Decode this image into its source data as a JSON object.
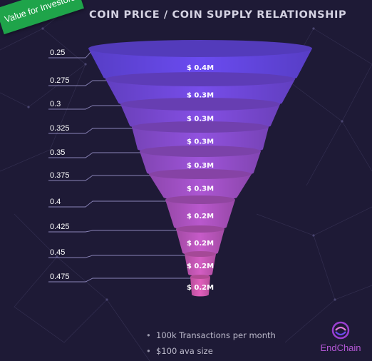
{
  "badge": "Value for Investors",
  "title": "COIN PRICE / COIN SUPPLY RELATIONSHIP",
  "funnel": {
    "levels": [
      {
        "price": "0.25",
        "value": "$ 0.4M"
      },
      {
        "price": "0.275",
        "value": "$ 0.3M"
      },
      {
        "price": "0.3",
        "value": "$ 0.3M"
      },
      {
        "price": "0.325",
        "value": "$ 0.3M"
      },
      {
        "price": "0.35",
        "value": "$ 0.3M"
      },
      {
        "price": "0.375",
        "value": "$ 0.3M"
      },
      {
        "price": "0.4",
        "value": "$ 0.2M"
      },
      {
        "price": "0.425",
        "value": "$ 0.2M"
      },
      {
        "price": "0.45",
        "value": "$ 0.2M"
      },
      {
        "price": "0.475",
        "value": "$ 0.2M"
      }
    ],
    "colors": {
      "top": "#6a4bf0",
      "bottom": "#e05fbc"
    }
  },
  "notes": [
    "100k Transactions per month",
    "$100 ava size"
  ],
  "logo": {
    "name": "EndChain",
    "color": "#b457d6"
  },
  "background": "#1e1a36"
}
